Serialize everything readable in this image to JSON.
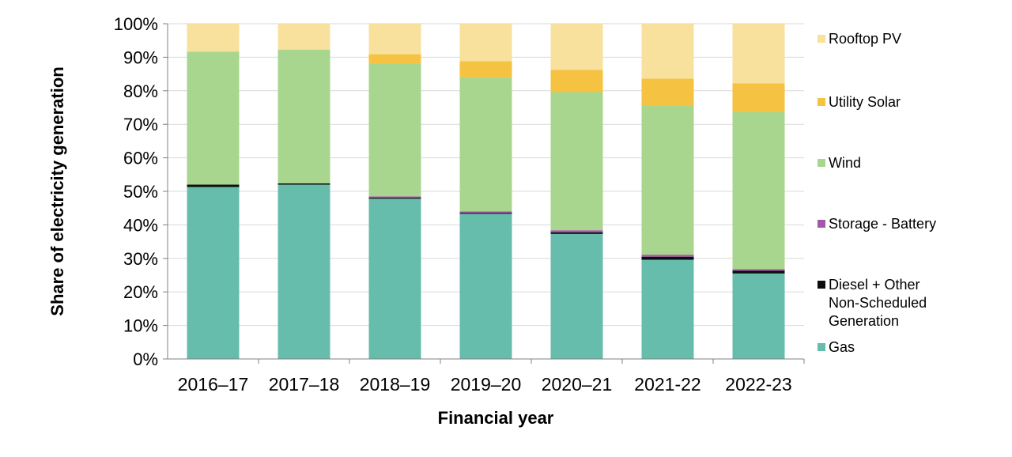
{
  "chart_data": {
    "type": "bar",
    "stacked": true,
    "percent": true,
    "xlabel": "Financial year",
    "ylabel": "Share of electricity generation",
    "ylim": [
      0,
      100
    ],
    "yticks": [
      "0%",
      "10%",
      "20%",
      "30%",
      "40%",
      "50%",
      "60%",
      "70%",
      "80%",
      "90%",
      "100%"
    ],
    "categories": [
      "2016–17",
      "2017–18",
      "2018–19",
      "2019–20",
      "2020–21",
      "2021-22",
      "2022-23"
    ],
    "series": [
      {
        "name": "Gas",
        "color": "#66bdac",
        "values": [
          51.3,
          52.0,
          47.8,
          43.3,
          37.3,
          29.6,
          25.5
        ]
      },
      {
        "name": "Diesel + Other Non-Scheduled Generation",
        "color": "#0d0d0d",
        "values": [
          0.7,
          0.4,
          0.3,
          0.3,
          0.5,
          0.9,
          0.8
        ]
      },
      {
        "name": "Storage - Battery",
        "color": "#a25aa8",
        "values": [
          0.0,
          0.0,
          0.4,
          0.4,
          0.6,
          0.6,
          0.5
        ]
      },
      {
        "name": "Wind",
        "color": "#a9d68e",
        "values": [
          39.7,
          39.9,
          39.6,
          40.0,
          41.2,
          44.5,
          46.9
        ]
      },
      {
        "name": "Utility Solar",
        "color": "#f5c242",
        "values": [
          0.0,
          0.0,
          2.8,
          4.8,
          6.6,
          8.0,
          8.5
        ]
      },
      {
        "name": "Rooftop PV",
        "color": "#f7e19c",
        "values": [
          8.3,
          7.7,
          9.1,
          11.2,
          13.8,
          16.4,
          17.8
        ]
      }
    ],
    "legend": {
      "position": "right",
      "entries": [
        "Rooftop PV",
        "Utility Solar",
        "Wind",
        "Storage - Battery",
        "Diesel + Other Non-Scheduled Generation",
        "Gas"
      ],
      "label_lines": {
        "Diesel + Other Non-Scheduled Generation": [
          "Diesel + Other",
          "Non-Scheduled",
          "Generation"
        ]
      }
    },
    "gridlines": true
  }
}
